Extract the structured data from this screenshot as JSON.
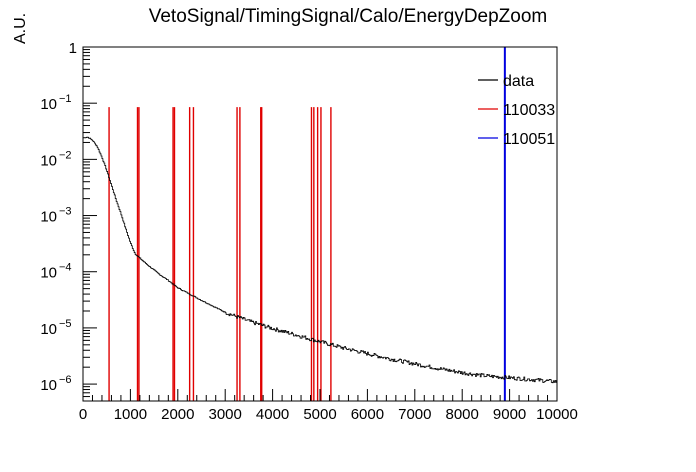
{
  "chart_data": {
    "type": "histogram",
    "title": "VetoSignal/TimingSignal/Calo/EnergyDepZoom",
    "xlabel": "",
    "ylabel": "A.U.",
    "xlim": [
      0,
      10000
    ],
    "ylim": [
      5e-07,
      1
    ],
    "log_y": true,
    "grid": false,
    "legend_placement": "top-right",
    "x_ticks": [
      0,
      1000,
      2000,
      3000,
      4000,
      5000,
      6000,
      7000,
      8000,
      9000,
      10000
    ],
    "y_ticks": [
      {
        "value": 1,
        "label": "1"
      },
      {
        "value": 0.1,
        "label": "10",
        "exp": "−1"
      },
      {
        "value": 0.01,
        "label": "10",
        "exp": "−2"
      },
      {
        "value": 0.001,
        "label": "10",
        "exp": "−3"
      },
      {
        "value": 0.0001,
        "label": "10",
        "exp": "−4"
      },
      {
        "value": 1e-05,
        "label": "10",
        "exp": "−5"
      },
      {
        "value": 1e-06,
        "label": "10",
        "exp": "−6"
      }
    ],
    "series": [
      {
        "name": "data",
        "color": "#000000",
        "style": "step",
        "points": [
          [
            0,
            0.024
          ],
          [
            100,
            0.025
          ],
          [
            200,
            0.022
          ],
          [
            300,
            0.017
          ],
          [
            400,
            0.011
          ],
          [
            500,
            0.0065
          ],
          [
            600,
            0.0035
          ],
          [
            700,
            0.0019
          ],
          [
            800,
            0.0011
          ],
          [
            900,
            0.0006
          ],
          [
            1000,
            0.00033
          ],
          [
            1100,
            0.00021
          ],
          [
            1200,
            0.000175
          ],
          [
            1400,
            0.000125
          ],
          [
            1600,
            9.2e-05
          ],
          [
            1800,
            7e-05
          ],
          [
            2000,
            5.2e-05
          ],
          [
            2500,
            3.1e-05
          ],
          [
            3000,
            1.9e-05
          ],
          [
            3500,
            1.32e-05
          ],
          [
            4000,
            9.8e-06
          ],
          [
            4500,
            7.5e-06
          ],
          [
            5000,
            5.7e-06
          ],
          [
            5500,
            4.4e-06
          ],
          [
            6000,
            3.5e-06
          ],
          [
            6500,
            2.8e-06
          ],
          [
            7000,
            2.3e-06
          ],
          [
            7500,
            1.9e-06
          ],
          [
            8000,
            1.6e-06
          ],
          [
            8500,
            1.4e-06
          ],
          [
            9000,
            1.3e-06
          ],
          [
            9500,
            1.2e-06
          ],
          [
            10000,
            1.1e-06
          ]
        ]
      },
      {
        "name": "110033",
        "color": "#e00000",
        "style": "spikes",
        "x": [
          550,
          1150,
          1180,
          1900,
          1930,
          2250,
          2330,
          3250,
          3310,
          3750,
          3770,
          4820,
          4870,
          4950,
          5020,
          5230
        ],
        "height": 0.085
      },
      {
        "name": "110051",
        "color": "#0000e0",
        "style": "spikes",
        "x": [
          8900
        ],
        "height": 1
      }
    ]
  }
}
